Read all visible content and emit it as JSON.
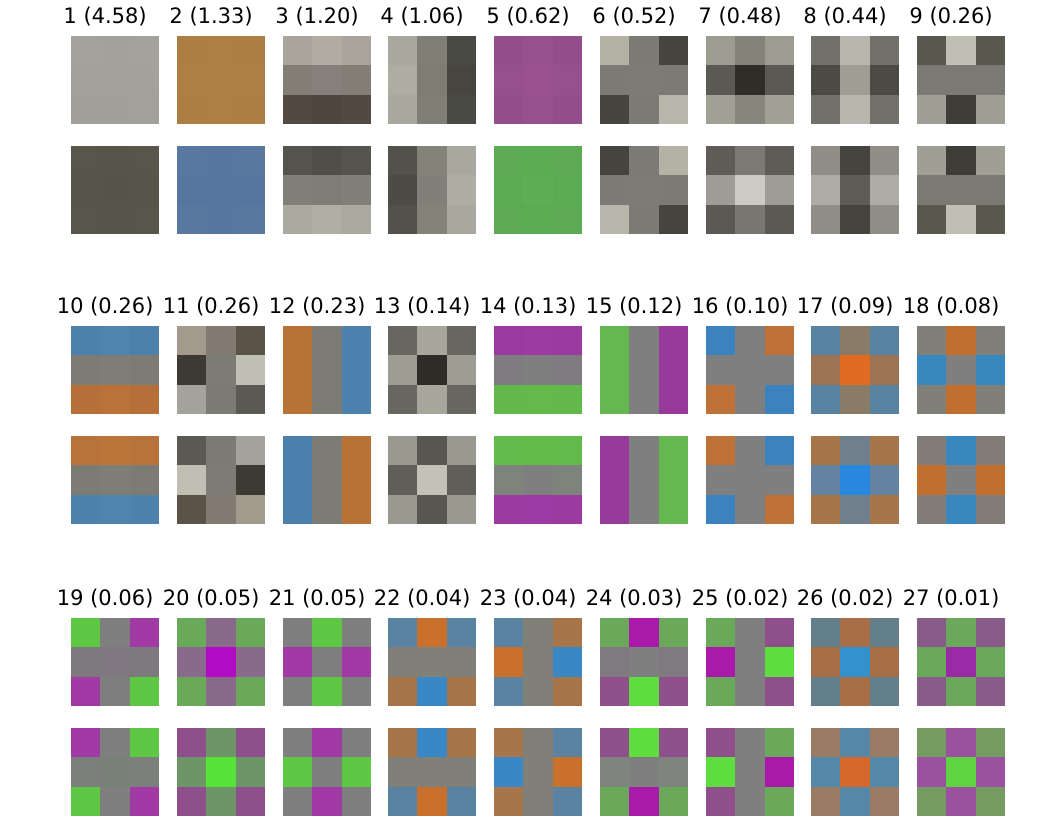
{
  "figure": {
    "components": [
      {
        "title": "1 (4.58)",
        "top": [
          "#a3a39b",
          "#a2a29a",
          "#a3a39b",
          "#a2a29a",
          "#a1a199",
          "#a2a29a",
          "#a0a098",
          "#a0a098",
          "#a1a199"
        ],
        "bottom": [
          "#58554a",
          "#57544a",
          "#58554a",
          "#57544a",
          "#56534a",
          "#57544a",
          "#58554a",
          "#57544a",
          "#58554a"
        ]
      },
      {
        "title": "2 (1.33)",
        "top": [
          "#ad7e44",
          "#ae7f45",
          "#ad7e44",
          "#ae7f45",
          "#af8046",
          "#ae7f45",
          "#ad7e44",
          "#ae7f45",
          "#ad7e44"
        ],
        "bottom": [
          "#5878a0",
          "#5777a1",
          "#5878a0",
          "#5676a0",
          "#5777a1",
          "#5676a0",
          "#5878a0",
          "#5777a1",
          "#5878a0"
        ]
      },
      {
        "title": "3 (1.20)",
        "top": [
          "#aaa59c",
          "#b1ac a2",
          "#aaa59c",
          "#827e76",
          "#85817a",
          "#827e76",
          "#524a42",
          "#4e463e",
          "#524a42"
        ],
        "bottom": [
          "#55544e",
          "#4f4e48",
          "#55544e",
          "#807f78",
          "#7d7c75",
          "#807f78",
          "#aaa99f",
          "#b0afa5",
          "#aaa99f"
        ]
      },
      {
        "title": "4 (1.06)",
        "top": [
          "#a9a89e",
          "#807f76",
          "#4a4a44",
          "#aeada2",
          "#7e7d74",
          "#46463f",
          "#a9a89e",
          "#807f76",
          "#4a4a44"
        ],
        "bottom": [
          "#52514a",
          "#84837a",
          "#a9a89e",
          "#4c4b45",
          "#817f77",
          "#aeada3",
          "#52514a",
          "#84837a",
          "#a9a89e"
        ]
      },
      {
        "title": "5 (0.62)",
        "top": [
          "#934d8d",
          "#964f8f",
          "#934d8d",
          "#964f8f",
          "#99528f",
          "#964f8f",
          "#934d8d",
          "#964f8f",
          "#934d8d"
        ],
        "bottom": [
          "#5daa54",
          "#5aac52",
          "#5daa54",
          "#5aac52",
          "#5caf54",
          "#5aac52",
          "#5daa54",
          "#5aac52",
          "#5daa54"
        ]
      },
      {
        "title": "6 (0.52)",
        "top": [
          "#b4b1a5",
          "#7c7a74",
          "#46443e",
          "#7c7a74",
          "#7d7b75",
          "#7c7a74",
          "#46443e",
          "#7c7a74",
          "#b8b6aa"
        ],
        "bottom": [
          "#46443e",
          "#7c7a74",
          "#b4b1a5",
          "#7c7a74",
          "#7d7b75",
          "#7c7a74",
          "#b8b6aa",
          "#7c7a74",
          "#46443e"
        ]
      },
      {
        "title": "7 (0.48)",
        "top": [
          "#9d9c91",
          "#84837a",
          "#9d9c91",
          "#5a5a52",
          "#2e2d26",
          "#5a5a52",
          "#a1a095",
          "#87867c",
          "#a1a095"
        ],
        "bottom": [
          "#5f5c58",
          "#7c7974",
          "#5f5c58",
          "#9f9b97",
          "#cdcac3",
          "#9f9b97",
          "#5c5954",
          "#7a7773",
          "#5c5954"
        ]
      },
      {
        "title": "8 (0.44)",
        "top": [
          "#72706a",
          "#b9b6ad",
          "#72706a",
          "#4b4a44",
          "#9f9d94",
          "#4b4a44",
          "#72706a",
          "#b9b6ad",
          "#72706a"
        ],
        "bottom": [
          "#8f8d86",
          "#45443f",
          "#8f8d86",
          "#aeacA4",
          "#5e5c56",
          "#aeaca4",
          "#8f8d86",
          "#45443f",
          "#8f8d86"
        ]
      },
      {
        "title": "9 (0.26)",
        "top": [
          "#58584f",
          "#bfbfb3",
          "#58584f",
          "#7b7a72",
          "#7b7a72",
          "#7b7a72",
          "#a09f95",
          "#3e3d37",
          "#a09f95"
        ],
        "bottom": [
          "#a09f95",
          "#3e3d37",
          "#a09f95",
          "#7b7a72",
          "#7b7a72",
          "#7b7a72",
          "#58584f",
          "#bfbfb3",
          "#58584f"
        ]
      },
      {
        "title": "10 (0.26)",
        "top": [
          "#4b81aa",
          "#4f84ad",
          "#4b81aa",
          "#7d7c74",
          "#7f7e76",
          "#7d7c74",
          "#b66f38",
          "#ba7238",
          "#b66f38"
        ],
        "bottom": [
          "#b8733a",
          "#bc7538",
          "#b8733a",
          "#7d7c74",
          "#7f7e76",
          "#7d7c74",
          "#4c82ab",
          "#4f84ad",
          "#4c82ab"
        ]
      },
      {
        "title": "11 (0.26)",
        "top": [
          "#a39a8e",
          "#827a70",
          "#5b5248",
          "#3c3a33",
          "#7d7c74",
          "#c0bfb4",
          "#a3a39b",
          "#7b7b74",
          "#5a5a53"
        ],
        "bottom": [
          "#5a5a53",
          "#7b7b74",
          "#a3a39b",
          "#c0bfb4",
          "#7d7c74",
          "#3c3a33",
          "#5b5248",
          "#827a70",
          "#a39a8e"
        ]
      },
      {
        "title": "12 (0.23)",
        "top": [
          "#b77235",
          "#7d7c74",
          "#4c82ad",
          "#b77235",
          "#7d7c74",
          "#4c82ad",
          "#b77235",
          "#7d7c74",
          "#4c82ad"
        ],
        "bottom": [
          "#4a80ab",
          "#7d7c74",
          "#b87235",
          "#4a80ab",
          "#7d7c74",
          "#b87235",
          "#4a80ab",
          "#7d7c74",
          "#b87235"
        ]
      },
      {
        "title": "13 (0.14)",
        "top": [
          "#68675f",
          "#a7a79c",
          "#68675f",
          "#9d9d93",
          "#2f2c27",
          "#9d9d93",
          "#68675f",
          "#a7a79c",
          "#68675f"
        ],
        "bottom": [
          "#9a998f",
          "#57564f",
          "#9a998f",
          "#5f5e57",
          "#c3c2b6",
          "#5f5e57",
          "#9a998f",
          "#57564f",
          "#9a998f"
        ]
      },
      {
        "title": "14 (0.13)",
        "top": [
          "#9a3aa0",
          "#9c3ba1",
          "#9a3aa0",
          "#807b80",
          "#7f7f7f",
          "#807b80",
          "#62b84b",
          "#63ba4b",
          "#62b84b"
        ],
        "bottom": [
          "#62ba4a",
          "#63bc4a",
          "#62ba4a",
          "#7e837c",
          "#7f7f7f",
          "#7e837c",
          "#9c3aa1",
          "#9e3aa3",
          "#9c3aa1"
        ]
      },
      {
        "title": "15 (0.12)",
        "top": [
          "#64b84f",
          "#7f7f7f",
          "#983a9c",
          "#64b84f",
          "#7f7f7f",
          "#983a9c",
          "#64b84f",
          "#7f7f7f",
          "#983a9c"
        ],
        "bottom": [
          "#983a9c",
          "#7f7f7f",
          "#64b84f",
          "#983a9c",
          "#7f7f7f",
          "#64b84f",
          "#983a9c",
          "#7f7f7f",
          "#64b84f"
        ]
      },
      {
        "title": "16 (0.10)",
        "top": [
          "#3b82bf",
          "#7f7f7f",
          "#be7237",
          "#7f7f7f",
          "#7f7f7f",
          "#7f7f7f",
          "#be7237",
          "#7f7f7f",
          "#3b82bf"
        ],
        "bottom": [
          "#be7237",
          "#7f7f7f",
          "#3b82bf",
          "#7f7f7f",
          "#7f7f7f",
          "#7f7f7f",
          "#3b82bf",
          "#7f7f7f",
          "#be7237"
        ]
      },
      {
        "title": "17 (0.09)",
        "top": [
          "#5883a0",
          "#8a7b66",
          "#5883a0",
          "#9a7455",
          "#df6a22",
          "#9a7455",
          "#5883a0",
          "#8a7b66",
          "#5883a0"
        ],
        "bottom": [
          "#a67549",
          "#6f7f8b",
          "#a67549",
          "#6482a1",
          "#2888dd",
          "#6482a1",
          "#a67549",
          "#6f7f8b",
          "#a67549"
        ]
      },
      {
        "title": "18 (0.08)",
        "top": [
          "#807f78",
          "#c16f2e",
          "#807f78",
          "#3987bf",
          "#7f7f7f",
          "#3987bf",
          "#807f78",
          "#c16f2e",
          "#807f78"
        ],
        "bottom": [
          "#817c76",
          "#3987bf",
          "#817c76",
          "#c16f2e",
          "#7f7f7f",
          "#c16f2e",
          "#817c76",
          "#3987bf",
          "#817c76"
        ]
      },
      {
        "title": "19 (0.06)",
        "top": [
          "#5ec743",
          "#7f7f7f",
          "#a23aa5",
          "#7c7a7c",
          "#807880",
          "#7c7a7c",
          "#a23aa5",
          "#7f7f7f",
          "#5ec743"
        ],
        "bottom": [
          "#a23aa5",
          "#7f7f7f",
          "#5ec743",
          "#7c807c",
          "#788078",
          "#7c807c",
          "#5ec743",
          "#7f7f7f",
          "#a23aa5"
        ]
      },
      {
        "title": "20 (0.05)",
        "top": [
          "#6aa95a",
          "#8a6a8a",
          "#6aa95a",
          "#8a6a8a",
          "#b10cc4",
          "#8a6a8a",
          "#6aa95a",
          "#8a6a8a",
          "#6aa95a"
        ],
        "bottom": [
          "#8f4f8d",
          "#6e9568",
          "#8f4f8d",
          "#6e9568",
          "#57e33a",
          "#6e9568",
          "#8f4f8d",
          "#6e9568",
          "#8f4f8d"
        ]
      },
      {
        "title": "21 (0.05)",
        "top": [
          "#7f7f7f",
          "#5ec743",
          "#7f7f7f",
          "#a23aa5",
          "#7f7f7f",
          "#a23aa5",
          "#7f7f7f",
          "#5ec743",
          "#7f7f7f"
        ],
        "bottom": [
          "#7f7f7f",
          "#a23aa5",
          "#7f7f7f",
          "#5ec743",
          "#7f7f7f",
          "#5ec743",
          "#7f7f7f",
          "#a23aa5",
          "#7f7f7f"
        ]
      },
      {
        "title": "22 (0.04)",
        "top": [
          "#5983a0",
          "#c8702c",
          "#5983a0",
          "#807f78",
          "#807f78",
          "#807f78",
          "#a67549",
          "#3987c4",
          "#a67549"
        ],
        "bottom": [
          "#a67549",
          "#3987c4",
          "#a67549",
          "#807f78",
          "#807f78",
          "#807f78",
          "#5983a0",
          "#c8702c",
          "#5983a0"
        ]
      },
      {
        "title": "23 (0.04)",
        "top": [
          "#5983a0",
          "#807f78",
          "#a67549",
          "#c8702c",
          "#807f78",
          "#3987c4",
          "#5983a0",
          "#807f78",
          "#a67549"
        ],
        "bottom": [
          "#a67549",
          "#807f78",
          "#5983a0",
          "#3987c4",
          "#807f78",
          "#c8702c",
          "#a67549",
          "#807f78",
          "#5983a0"
        ]
      },
      {
        "title": "24 (0.03)",
        "top": [
          "#6aa95a",
          "#a91aab",
          "#6aa95a",
          "#7f7a7f",
          "#7f7f7f",
          "#7f7a7f",
          "#8f4f8d",
          "#5edd3e",
          "#8f4f8d"
        ],
        "bottom": [
          "#8f4f8d",
          "#5edd3e",
          "#8f4f8d",
          "#7f847f",
          "#7f7f7f",
          "#7f847f",
          "#6aa95a",
          "#a91aab",
          "#6aa95a"
        ]
      },
      {
        "title": "25 (0.02)",
        "top": [
          "#6aa95a",
          "#7f7f7f",
          "#8f4f8d",
          "#a91aab",
          "#7f7f7f",
          "#5edd3e",
          "#6aa95a",
          "#7f7f7f",
          "#8f4f8d"
        ],
        "bottom": [
          "#8f4f8d",
          "#7f7f7f",
          "#6aa95a",
          "#5edd3e",
          "#7f7f7f",
          "#a91aab",
          "#8f4f8d",
          "#7f7f7f",
          "#6aa95a"
        ]
      },
      {
        "title": "26 (0.02)",
        "top": [
          "#63808a",
          "#a86e48",
          "#63808a",
          "#a86e48",
          "#3391cc",
          "#a86e48",
          "#63808a",
          "#a86e48",
          "#63808a"
        ],
        "bottom": [
          "#9b7a66",
          "#5488a6",
          "#9b7a66",
          "#5488a6",
          "#d4682a",
          "#5488a6",
          "#9b7a66",
          "#5488a6",
          "#9b7a66"
        ]
      },
      {
        "title": "27 (0.01)",
        "top": [
          "#895b88",
          "#6ca85c",
          "#895b88",
          "#6ca85c",
          "#9a2aa6",
          "#6ca85c",
          "#895b88",
          "#6ca85c",
          "#895b88"
        ],
        "bottom": [
          "#759a62",
          "#9a52a0",
          "#759a62",
          "#9a52a0",
          "#5ed440",
          "#9a52a0",
          "#759a62",
          "#9a52a0",
          "#759a62"
        ]
      }
    ]
  }
}
